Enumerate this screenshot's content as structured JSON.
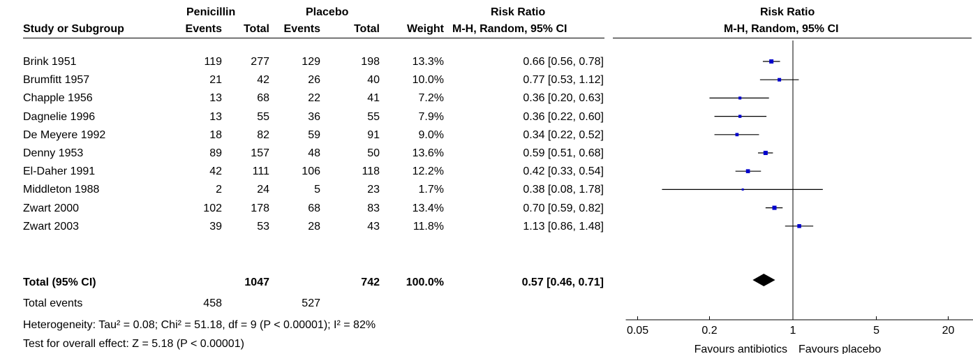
{
  "header": {
    "penicillin": "Penicillin",
    "placebo": "Placebo",
    "rr_col_title": "Risk Ratio",
    "study_col": "Study or Subgroup",
    "events": "Events",
    "total": "Total",
    "weight": "Weight",
    "method": "M-H, Random, 95% CI",
    "plot_title": "Risk Ratio",
    "plot_method": "M-H, Random, 95% CI"
  },
  "studies": [
    {
      "name": "Brink 1951",
      "e1": "119",
      "t1": "277",
      "e2": "129",
      "t2": "198",
      "weight": "13.3%",
      "ci": "0.66 [0.56, 0.78]"
    },
    {
      "name": "Brumfitt 1957",
      "e1": "21",
      "t1": "42",
      "e2": "26",
      "t2": "40",
      "weight": "10.0%",
      "ci": "0.77 [0.53, 1.12]"
    },
    {
      "name": "Chapple 1956",
      "e1": "13",
      "t1": "68",
      "e2": "22",
      "t2": "41",
      "weight": "7.2%",
      "ci": "0.36 [0.20, 0.63]"
    },
    {
      "name": "Dagnelie 1996",
      "e1": "13",
      "t1": "55",
      "e2": "36",
      "t2": "55",
      "weight": "7.9%",
      "ci": "0.36 [0.22, 0.60]"
    },
    {
      "name": "De Meyere 1992",
      "e1": "18",
      "t1": "82",
      "e2": "59",
      "t2": "91",
      "weight": "9.0%",
      "ci": "0.34 [0.22, 0.52]"
    },
    {
      "name": "Denny 1953",
      "e1": "89",
      "t1": "157",
      "e2": "48",
      "t2": "50",
      "weight": "13.6%",
      "ci": "0.59 [0.51, 0.68]"
    },
    {
      "name": "El-Daher 1991",
      "e1": "42",
      "t1": "111",
      "e2": "106",
      "t2": "118",
      "weight": "12.2%",
      "ci": "0.42 [0.33, 0.54]"
    },
    {
      "name": "Middleton 1988",
      "e1": "2",
      "t1": "24",
      "e2": "5",
      "t2": "23",
      "weight": "1.7%",
      "ci": "0.38 [0.08, 1.78]"
    },
    {
      "name": "Zwart 2000",
      "e1": "102",
      "t1": "178",
      "e2": "68",
      "t2": "83",
      "weight": "13.4%",
      "ci": "0.70 [0.59, 0.82]"
    },
    {
      "name": "Zwart 2003",
      "e1": "39",
      "t1": "53",
      "e2": "28",
      "t2": "43",
      "weight": "11.8%",
      "ci": "1.13 [0.86, 1.48]"
    }
  ],
  "total": {
    "label": "Total (95% CI)",
    "t1": "1047",
    "t2": "742",
    "weight": "100.0%",
    "ci": "0.57 [0.46, 0.71]"
  },
  "total_events": {
    "label": "Total events",
    "e1": "458",
    "e2": "527"
  },
  "heterogeneity": "Heterogeneity: Tau² = 0.08; Chi² = 51.18, df = 9 (P < 0.00001); I² = 82%",
  "overall_effect": "Test for overall effect: Z = 5.18 (P < 0.00001)",
  "colors": {
    "marker": "#0000cc",
    "line": "#000000",
    "diamond": "#000000"
  },
  "chart_data": {
    "type": "scatter",
    "x_scale": "log",
    "xlim": [
      0.05,
      20
    ],
    "ticks": [
      0.05,
      0.2,
      1,
      5,
      20
    ],
    "tick_labels": [
      "0.05",
      "0.2",
      "1",
      "5",
      "20"
    ],
    "reference_line": 1,
    "xlabel_left": "Favours antibiotics",
    "xlabel_right": "Favours placebo",
    "points": [
      {
        "study": "Brink 1951",
        "rr": 0.66,
        "lo": 0.56,
        "hi": 0.78,
        "weight": 13.3
      },
      {
        "study": "Brumfitt 1957",
        "rr": 0.77,
        "lo": 0.53,
        "hi": 1.12,
        "weight": 10.0
      },
      {
        "study": "Chapple 1956",
        "rr": 0.36,
        "lo": 0.2,
        "hi": 0.63,
        "weight": 7.2
      },
      {
        "study": "Dagnelie 1996",
        "rr": 0.36,
        "lo": 0.22,
        "hi": 0.6,
        "weight": 7.9
      },
      {
        "study": "De Meyere 1992",
        "rr": 0.34,
        "lo": 0.22,
        "hi": 0.52,
        "weight": 9.0
      },
      {
        "study": "Denny 1953",
        "rr": 0.59,
        "lo": 0.51,
        "hi": 0.68,
        "weight": 13.6
      },
      {
        "study": "El-Daher 1991",
        "rr": 0.42,
        "lo": 0.33,
        "hi": 0.54,
        "weight": 12.2
      },
      {
        "study": "Middleton 1988",
        "rr": 0.38,
        "lo": 0.08,
        "hi": 1.78,
        "weight": 1.7
      },
      {
        "study": "Zwart 2000",
        "rr": 0.7,
        "lo": 0.59,
        "hi": 0.82,
        "weight": 13.4
      },
      {
        "study": "Zwart 2003",
        "rr": 1.13,
        "lo": 0.86,
        "hi": 1.48,
        "weight": 11.8
      }
    ],
    "pooled": {
      "rr": 0.57,
      "lo": 0.46,
      "hi": 0.71
    }
  }
}
